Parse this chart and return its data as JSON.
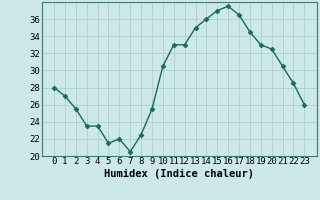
{
  "x": [
    0,
    1,
    2,
    3,
    4,
    5,
    6,
    7,
    8,
    9,
    10,
    11,
    12,
    13,
    14,
    15,
    16,
    17,
    18,
    19,
    20,
    21,
    22,
    23
  ],
  "y": [
    28,
    27,
    25.5,
    23.5,
    23.5,
    21.5,
    22,
    20.5,
    22.5,
    25.5,
    30.5,
    33,
    33,
    35,
    36,
    37,
    37.5,
    36.5,
    34.5,
    33,
    32.5,
    30.5,
    28.5,
    26
  ],
  "line_color": "#1a6b5a",
  "marker": "D",
  "marker_size": 2.5,
  "bg_color": "#cce8e8",
  "grid_color": "#aacccc",
  "xlabel": "Humidex (Indice chaleur)",
  "ylim": [
    20,
    38
  ],
  "yticks": [
    20,
    22,
    24,
    26,
    28,
    30,
    32,
    34,
    36
  ],
  "xticks": [
    0,
    1,
    2,
    3,
    4,
    5,
    6,
    7,
    8,
    9,
    10,
    11,
    12,
    13,
    14,
    15,
    16,
    17,
    18,
    19,
    20,
    21,
    22,
    23
  ],
  "xlabel_fontsize": 7.5,
  "tick_fontsize": 6.5,
  "line_width": 1.0
}
